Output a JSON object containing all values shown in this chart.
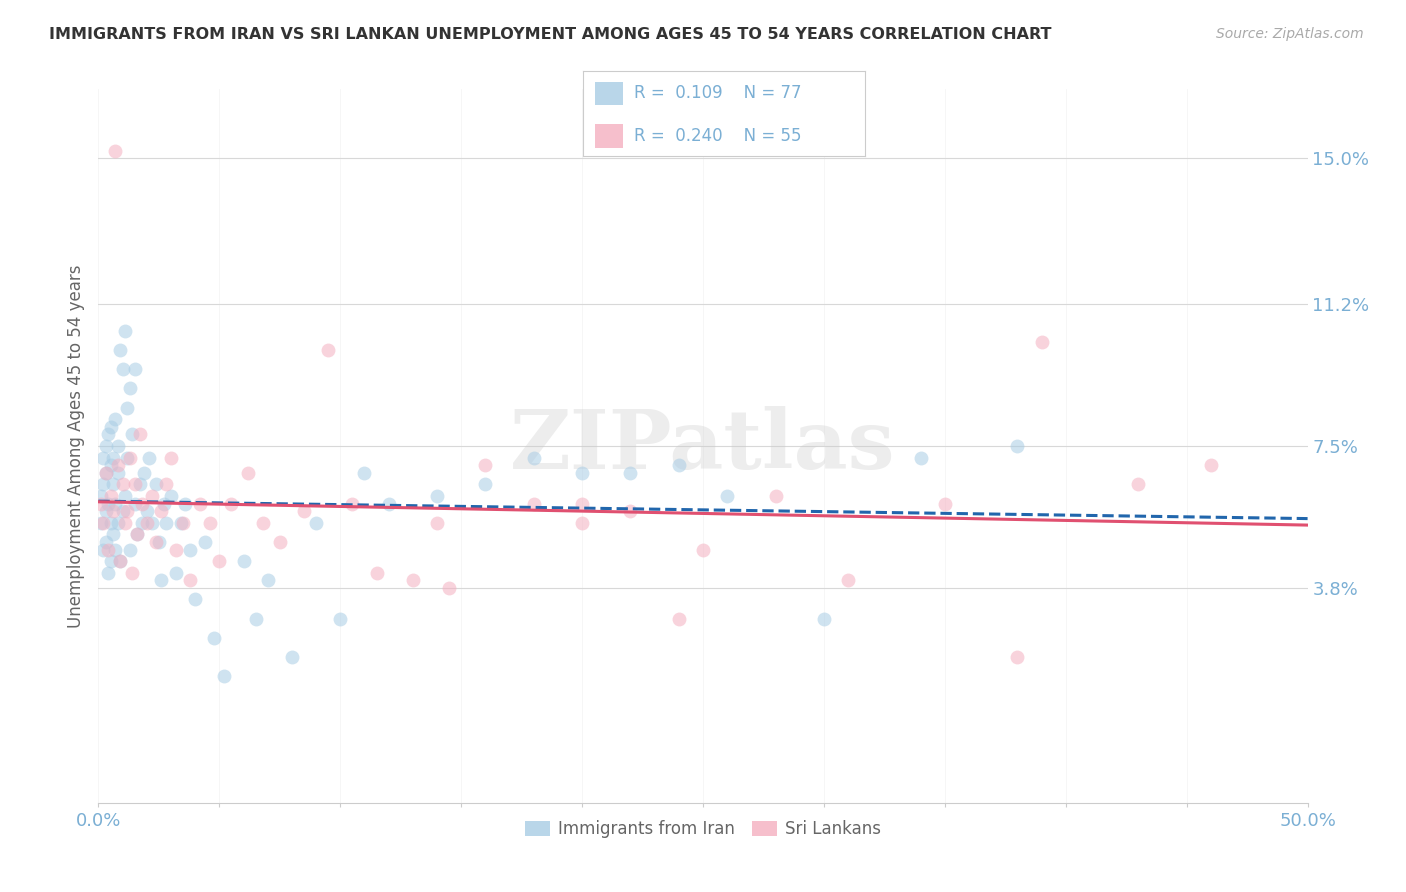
{
  "title": "IMMIGRANTS FROM IRAN VS SRI LANKAN UNEMPLOYMENT AMONG AGES 45 TO 54 YEARS CORRELATION CHART",
  "source": "Source: ZipAtlas.com",
  "ylabel": "Unemployment Among Ages 45 to 54 years",
  "xmin": 0.0,
  "xmax": 0.5,
  "ymin": -0.018,
  "ymax": 0.168,
  "yticks": [
    0.038,
    0.075,
    0.112,
    0.15
  ],
  "ytick_labels": [
    "3.8%",
    "7.5%",
    "11.2%",
    "15.0%"
  ],
  "xticks": [
    0.0,
    0.05,
    0.1,
    0.15,
    0.2,
    0.25,
    0.3,
    0.35,
    0.4,
    0.45,
    0.5
  ],
  "xtick_labels_show": [
    "0.0%",
    "",
    "",
    "",
    "",
    "",
    "",
    "",
    "",
    "",
    "50.0%"
  ],
  "legend_entries": [
    {
      "label": "Immigrants from Iran",
      "color": "#a8cce4",
      "R": "0.109",
      "N": "77"
    },
    {
      "label": "Sri Lankans",
      "color": "#f4afc0",
      "R": "0.240",
      "N": "55"
    }
  ],
  "iran_x": [
    0.001,
    0.001,
    0.002,
    0.002,
    0.002,
    0.003,
    0.003,
    0.003,
    0.003,
    0.004,
    0.004,
    0.004,
    0.005,
    0.005,
    0.005,
    0.005,
    0.006,
    0.006,
    0.006,
    0.007,
    0.007,
    0.007,
    0.008,
    0.008,
    0.008,
    0.009,
    0.009,
    0.01,
    0.01,
    0.011,
    0.011,
    0.012,
    0.012,
    0.013,
    0.013,
    0.014,
    0.015,
    0.015,
    0.016,
    0.017,
    0.018,
    0.019,
    0.02,
    0.021,
    0.022,
    0.024,
    0.025,
    0.026,
    0.027,
    0.028,
    0.03,
    0.032,
    0.034,
    0.036,
    0.038,
    0.04,
    0.044,
    0.048,
    0.052,
    0.06,
    0.065,
    0.07,
    0.08,
    0.09,
    0.1,
    0.11,
    0.12,
    0.14,
    0.16,
    0.18,
    0.2,
    0.22,
    0.24,
    0.26,
    0.3,
    0.34,
    0.38
  ],
  "iran_y": [
    0.055,
    0.062,
    0.048,
    0.065,
    0.072,
    0.05,
    0.058,
    0.068,
    0.075,
    0.042,
    0.06,
    0.078,
    0.045,
    0.055,
    0.07,
    0.08,
    0.052,
    0.065,
    0.072,
    0.048,
    0.06,
    0.082,
    0.055,
    0.068,
    0.075,
    0.045,
    0.1,
    0.058,
    0.095,
    0.062,
    0.105,
    0.072,
    0.085,
    0.048,
    0.09,
    0.078,
    0.06,
    0.095,
    0.052,
    0.065,
    0.055,
    0.068,
    0.058,
    0.072,
    0.055,
    0.065,
    0.05,
    0.04,
    0.06,
    0.055,
    0.062,
    0.042,
    0.055,
    0.06,
    0.048,
    0.035,
    0.05,
    0.025,
    0.015,
    0.045,
    0.03,
    0.04,
    0.02,
    0.055,
    0.03,
    0.068,
    0.06,
    0.062,
    0.065,
    0.072,
    0.068,
    0.068,
    0.07,
    0.062,
    0.03,
    0.072,
    0.075
  ],
  "sri_x": [
    0.001,
    0.002,
    0.003,
    0.004,
    0.005,
    0.006,
    0.007,
    0.008,
    0.009,
    0.01,
    0.011,
    0.012,
    0.013,
    0.014,
    0.015,
    0.016,
    0.017,
    0.018,
    0.02,
    0.022,
    0.024,
    0.026,
    0.028,
    0.03,
    0.032,
    0.035,
    0.038,
    0.042,
    0.046,
    0.05,
    0.055,
    0.062,
    0.068,
    0.075,
    0.085,
    0.095,
    0.105,
    0.115,
    0.13,
    0.145,
    0.16,
    0.18,
    0.2,
    0.22,
    0.25,
    0.28,
    0.31,
    0.35,
    0.39,
    0.43,
    0.14,
    0.24,
    0.2,
    0.38,
    0.46
  ],
  "sri_y": [
    0.06,
    0.055,
    0.068,
    0.048,
    0.062,
    0.058,
    0.152,
    0.07,
    0.045,
    0.065,
    0.055,
    0.058,
    0.072,
    0.042,
    0.065,
    0.052,
    0.078,
    0.06,
    0.055,
    0.062,
    0.05,
    0.058,
    0.065,
    0.072,
    0.048,
    0.055,
    0.04,
    0.06,
    0.055,
    0.045,
    0.06,
    0.068,
    0.055,
    0.05,
    0.058,
    0.1,
    0.06,
    0.042,
    0.04,
    0.038,
    0.07,
    0.06,
    0.055,
    0.058,
    0.048,
    0.062,
    0.04,
    0.06,
    0.102,
    0.065,
    0.055,
    0.03,
    0.06,
    0.02,
    0.07
  ],
  "background_color": "#ffffff",
  "grid_color": "#d8d8d8",
  "iran_dot_color": "#a8cce4",
  "sri_dot_color": "#f4afc0",
  "iran_line_color": "#2166ac",
  "sri_line_color": "#e05070",
  "title_color": "#333333",
  "axis_label_color": "#666666",
  "tick_label_color": "#7bafd4",
  "watermark_text": "ZIPatlas",
  "dot_size": 100,
  "dot_alpha": 0.55,
  "line_width": 2.2
}
